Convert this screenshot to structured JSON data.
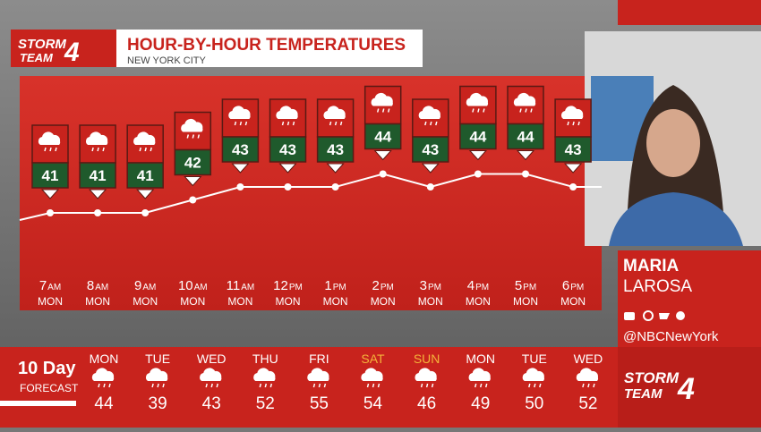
{
  "header": {
    "logo": "STORM",
    "logo_sub": "TEAM",
    "logo_num": "4",
    "title": "HOUR-BY-HOUR TEMPERATURES",
    "subtitle": "NEW YORK CITY"
  },
  "chart_data": {
    "type": "line",
    "categories": [
      "7",
      "8",
      "9",
      "10",
      "11",
      "12",
      "1",
      "2",
      "3",
      "4",
      "5",
      "6"
    ],
    "periods": [
      "AM",
      "AM",
      "AM",
      "AM",
      "AM",
      "PM",
      "PM",
      "PM",
      "PM",
      "PM",
      "PM",
      "PM"
    ],
    "days": [
      "MON",
      "MON",
      "MON",
      "MON",
      "MON",
      "MON",
      "MON",
      "MON",
      "MON",
      "MON",
      "MON",
      "MON"
    ],
    "values": [
      41,
      41,
      41,
      42,
      43,
      43,
      43,
      44,
      43,
      44,
      44,
      43
    ],
    "color": "#ffffff",
    "label_color": "#1f5a2c"
  },
  "presenter": {
    "first_name": "MARIA",
    "last_name": "LAROSA",
    "handle": "@NBCNewYork"
  },
  "forecast": {
    "title": "10 Day",
    "subtitle": "FORECAST",
    "days": [
      {
        "day": "MON",
        "temp": 44,
        "color": "#ffffff"
      },
      {
        "day": "TUE",
        "temp": 39,
        "color": "#ffffff"
      },
      {
        "day": "WED",
        "temp": 43,
        "color": "#ffffff"
      },
      {
        "day": "THU",
        "temp": 52,
        "color": "#ffffff"
      },
      {
        "day": "FRI",
        "temp": 55,
        "color": "#ffffff"
      },
      {
        "day": "SAT",
        "temp": 54,
        "color": "#f4b33a"
      },
      {
        "day": "SUN",
        "temp": 46,
        "color": "#f4b33a"
      },
      {
        "day": "MON",
        "temp": 49,
        "color": "#ffffff"
      },
      {
        "day": "TUE",
        "temp": 50,
        "color": "#ffffff"
      },
      {
        "day": "WED",
        "temp": 52,
        "color": "#ffffff"
      }
    ]
  },
  "footer_logo": {
    "text": "STORM",
    "sub": "TEAM",
    "num": "4"
  }
}
